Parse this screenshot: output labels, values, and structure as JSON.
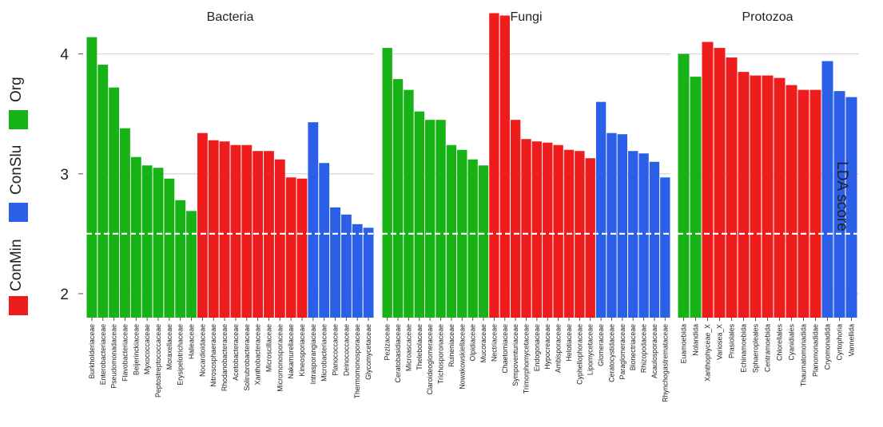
{
  "chart_data": {
    "type": "bar",
    "ylabel": "LDA score",
    "ylim": [
      1.8,
      4.35
    ],
    "yticks": [
      2,
      3,
      4
    ],
    "threshold": 2.5,
    "grid": true,
    "legend": {
      "placement": "left",
      "entries": [
        {
          "name": "Org",
          "color": "#16b216"
        },
        {
          "name": "ConSlu",
          "color": "#2b5fe8"
        },
        {
          "name": "ConMin",
          "color": "#ee1c1c"
        }
      ]
    },
    "panels": [
      {
        "title": "Bacteria",
        "bars": [
          {
            "label": "Burkholderiaceae",
            "value": 4.14,
            "group": "Org"
          },
          {
            "label": "Enterobacteriaceae",
            "value": 3.91,
            "group": "Org"
          },
          {
            "label": "Pseudomonadaceae",
            "value": 3.72,
            "group": "Org"
          },
          {
            "label": "Flavobacteriaceae",
            "value": 3.38,
            "group": "Org"
          },
          {
            "label": "Beijerinckiaceae",
            "value": 3.14,
            "group": "Org"
          },
          {
            "label": "Myxococcaceae",
            "value": 3.07,
            "group": "Org"
          },
          {
            "label": "Peptostreptococcaceae",
            "value": 3.05,
            "group": "Org"
          },
          {
            "label": "Moraxellaceae",
            "value": 2.96,
            "group": "Org"
          },
          {
            "label": "Erysipelotrichaceae",
            "value": 2.78,
            "group": "Org"
          },
          {
            "label": "Halieaceae",
            "value": 2.69,
            "group": "Org"
          },
          {
            "label": "Nocardioidaceae",
            "value": 3.34,
            "group": "ConMin"
          },
          {
            "label": "Nitrososphaeraceae",
            "value": 3.28,
            "group": "ConMin"
          },
          {
            "label": "Rhodanobacteraceae",
            "value": 3.27,
            "group": "ConMin"
          },
          {
            "label": "Acetobacteraceae",
            "value": 3.24,
            "group": "ConMin"
          },
          {
            "label": "Solirubrobacteraceae",
            "value": 3.24,
            "group": "ConMin"
          },
          {
            "label": "Xanthobacteraceae",
            "value": 3.19,
            "group": "ConMin"
          },
          {
            "label": "Microscillaceae",
            "value": 3.19,
            "group": "ConMin"
          },
          {
            "label": "Micromonosporaceae",
            "value": 3.12,
            "group": "ConMin"
          },
          {
            "label": "Nakamurellaceae",
            "value": 2.97,
            "group": "ConMin"
          },
          {
            "label": "Kineosporiaceae",
            "value": 2.96,
            "group": "ConMin"
          },
          {
            "label": "Intrasporangiaceae",
            "value": 3.43,
            "group": "ConSlu"
          },
          {
            "label": "Microbacteriaceae",
            "value": 3.09,
            "group": "ConSlu"
          },
          {
            "label": "Planococcaceae",
            "value": 2.72,
            "group": "ConSlu"
          },
          {
            "label": "Deinococcaceae",
            "value": 2.66,
            "group": "ConSlu"
          },
          {
            "label": "Thermomonosporaceae",
            "value": 2.58,
            "group": "ConSlu"
          },
          {
            "label": "Glycomycetaceae",
            "value": 2.55,
            "group": "ConSlu"
          }
        ]
      },
      {
        "title": "Fungi",
        "bars": [
          {
            "label": "Pezizaceae",
            "value": 4.05,
            "group": "Org"
          },
          {
            "label": "Ceratobasidiaceae",
            "value": 3.79,
            "group": "Org"
          },
          {
            "label": "Microascaceae",
            "value": 3.7,
            "group": "Org"
          },
          {
            "label": "Thelebolaceae",
            "value": 3.52,
            "group": "Org"
          },
          {
            "label": "Claroideoglomeraceae",
            "value": 3.45,
            "group": "Org"
          },
          {
            "label": "Trichosporonaceae",
            "value": 3.45,
            "group": "Org"
          },
          {
            "label": "Ruineniaceae",
            "value": 3.24,
            "group": "Org"
          },
          {
            "label": "Nowakowskiellaceae",
            "value": 3.2,
            "group": "Org"
          },
          {
            "label": "Olpidiaceae",
            "value": 3.12,
            "group": "Org"
          },
          {
            "label": "Mucoraceae",
            "value": 3.07,
            "group": "Org"
          },
          {
            "label": "Nectriaceae",
            "value": 4.34,
            "group": "ConMin"
          },
          {
            "label": "Chaetomiaceae",
            "value": 4.32,
            "group": "ConMin"
          },
          {
            "label": "Sympoventuriaceae",
            "value": 3.45,
            "group": "ConMin"
          },
          {
            "label": "Trimorphomycetaceae",
            "value": 3.29,
            "group": "ConMin"
          },
          {
            "label": "Endogonaceae",
            "value": 3.27,
            "group": "ConMin"
          },
          {
            "label": "Hypocreaceae",
            "value": 3.26,
            "group": "ConMin"
          },
          {
            "label": "Ambisporaceae",
            "value": 3.24,
            "group": "ConMin"
          },
          {
            "label": "Helotiaceae",
            "value": 3.2,
            "group": "ConMin"
          },
          {
            "label": "Cyphellophoraceae",
            "value": 3.19,
            "group": "ConMin"
          },
          {
            "label": "Lipomycetaceae",
            "value": 3.13,
            "group": "ConMin"
          },
          {
            "label": "Glomeraceae",
            "value": 3.6,
            "group": "ConSlu"
          },
          {
            "label": "Ceratocystidaceae",
            "value": 3.34,
            "group": "ConSlu"
          },
          {
            "label": "Paraglomeraceae",
            "value": 3.33,
            "group": "ConSlu"
          },
          {
            "label": "Bionectriaceae",
            "value": 3.19,
            "group": "ConSlu"
          },
          {
            "label": "Rhizopodaceae",
            "value": 3.17,
            "group": "ConSlu"
          },
          {
            "label": "Acaulosporaceae",
            "value": 3.1,
            "group": "ConSlu"
          },
          {
            "label": "Rhynchogastremataceae",
            "value": 2.97,
            "group": "ConSlu"
          }
        ]
      },
      {
        "title": "Protozoa",
        "bars": [
          {
            "label": "Euamoebida",
            "value": 4.0,
            "group": "Org"
          },
          {
            "label": "Nolandida",
            "value": 3.81,
            "group": "Org"
          },
          {
            "label": "Xanthophyceae_X",
            "value": 4.1,
            "group": "ConMin"
          },
          {
            "label": "Variosea_X",
            "value": 4.05,
            "group": "ConMin"
          },
          {
            "label": "Prasiolales",
            "value": 3.97,
            "group": "ConMin"
          },
          {
            "label": "Echinamoebida",
            "value": 3.85,
            "group": "ConMin"
          },
          {
            "label": "Sphaeropleales",
            "value": 3.82,
            "group": "ConMin"
          },
          {
            "label": "Centramoebida",
            "value": 3.82,
            "group": "ConMin"
          },
          {
            "label": "Chlorellales",
            "value": 3.8,
            "group": "ConMin"
          },
          {
            "label": "Cyanidiales",
            "value": 3.74,
            "group": "ConMin"
          },
          {
            "label": "Thaumatomonadida",
            "value": 3.7,
            "group": "ConMin"
          },
          {
            "label": "Planomonadidae",
            "value": 3.7,
            "group": "ConMin"
          },
          {
            "label": "Cryomonadida",
            "value": 3.94,
            "group": "ConSlu"
          },
          {
            "label": "Cyrtophoria",
            "value": 3.69,
            "group": "ConSlu"
          },
          {
            "label": "Vannellida",
            "value": 3.64,
            "group": "ConSlu"
          }
        ]
      }
    ]
  }
}
